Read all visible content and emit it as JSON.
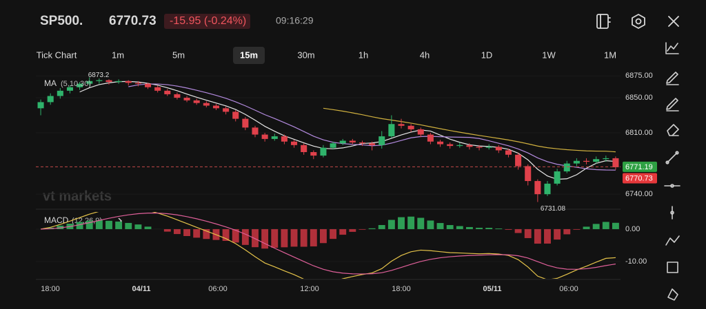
{
  "header": {
    "symbol": "SP500.",
    "price": "6770.73",
    "change": "-15.95 (-0.24%)",
    "time": "09:16:29"
  },
  "timeframes": {
    "items": [
      "Tick Chart",
      "1m",
      "5m",
      "15m",
      "30m",
      "1h",
      "4h",
      "1D",
      "1W",
      "1M"
    ],
    "selected": 3
  },
  "chart_data": {
    "type": "candlestick",
    "watermark": "vt markets",
    "ma": {
      "label": "MA",
      "params": "(5,10,30)",
      "colors": [
        "#e8e8e8",
        "#b48be0",
        "#d2b23f"
      ]
    },
    "macd": {
      "label": "MACD",
      "params": "(12,26,9)",
      "colors": [
        "#e6c44a",
        "#e0609a"
      ],
      "up": "#2e9e55",
      "down": "#b0303a",
      "ylim": [
        -15.3,
        5.3
      ],
      "yticks": [
        {
          "value": 0,
          "label": "0.00"
        },
        {
          "value": -10,
          "label": "-10.00"
        }
      ]
    },
    "up_color": "#2fb36b",
    "down_color": "#e0414b",
    "ylim": [
      6726,
      6883
    ],
    "yticks": [
      {
        "value": 6875,
        "label": "6875.00"
      },
      {
        "value": 6850,
        "label": "6850.00"
      },
      {
        "value": 6810,
        "label": "6810.00"
      },
      {
        "value": 6740,
        "label": "6740.00"
      }
    ],
    "high_label": "6873.2",
    "low_label": "6731.08",
    "price_tags": [
      {
        "value": 6771.19,
        "color": "#2ea043"
      },
      {
        "value": 6770.73,
        "color": "#e5383b"
      }
    ],
    "x_labels": [
      "18:00",
      "04/11",
      "06:00",
      "12:00",
      "18:00",
      "05/11",
      "06:00"
    ],
    "ohlc": [
      [
        6838,
        6848,
        6830,
        6845
      ],
      [
        6845,
        6855,
        6842,
        6852
      ],
      [
        6852,
        6861,
        6849,
        6858
      ],
      [
        6858,
        6864,
        6855,
        6862
      ],
      [
        6862,
        6868,
        6859,
        6866
      ],
      [
        6866,
        6873.2,
        6864,
        6869
      ],
      [
        6869,
        6872,
        6866,
        6870
      ],
      [
        6870,
        6871,
        6865,
        6868
      ],
      [
        6868,
        6871,
        6866,
        6869
      ],
      [
        6869,
        6870,
        6864,
        6867
      ],
      [
        6867,
        6869,
        6863,
        6866
      ],
      [
        6866,
        6867,
        6860,
        6862
      ],
      [
        6862,
        6864,
        6856,
        6858
      ],
      [
        6858,
        6860,
        6852,
        6854
      ],
      [
        6854,
        6856,
        6848,
        6850
      ],
      [
        6850,
        6852,
        6845,
        6847
      ],
      [
        6847,
        6849,
        6842,
        6844
      ],
      [
        6844,
        6846,
        6839,
        6841
      ],
      [
        6841,
        6843,
        6836,
        6838
      ],
      [
        6838,
        6840,
        6831,
        6834
      ],
      [
        6834,
        6836,
        6823,
        6826
      ],
      [
        6826,
        6828,
        6813,
        6816
      ],
      [
        6816,
        6818,
        6805,
        6808
      ],
      [
        6808,
        6810,
        6800,
        6803
      ],
      [
        6803,
        6809,
        6801,
        6806
      ],
      [
        6806,
        6808,
        6797,
        6800
      ],
      [
        6800,
        6802,
        6793,
        6796
      ],
      [
        6796,
        6798,
        6785,
        6788
      ],
      [
        6788,
        6790,
        6780,
        6784
      ],
      [
        6784,
        6796,
        6782,
        6793
      ],
      [
        6793,
        6800,
        6791,
        6798
      ],
      [
        6798,
        6803,
        6796,
        6801
      ],
      [
        6801,
        6803,
        6797,
        6799
      ],
      [
        6799,
        6801,
        6795,
        6798
      ],
      [
        6798,
        6800,
        6790,
        6796
      ],
      [
        6796,
        6812,
        6792,
        6806
      ],
      [
        6806,
        6830,
        6804,
        6820
      ],
      [
        6820,
        6826,
        6815,
        6818
      ],
      [
        6818,
        6820,
        6811,
        6814
      ],
      [
        6814,
        6816,
        6805,
        6808
      ],
      [
        6808,
        6810,
        6797,
        6800
      ],
      [
        6800,
        6802,
        6794,
        6797
      ],
      [
        6797,
        6799,
        6792,
        6795
      ],
      [
        6795,
        6799,
        6793,
        6796
      ],
      [
        6796,
        6798,
        6791,
        6794
      ],
      [
        6794,
        6796,
        6790,
        6793
      ],
      [
        6793,
        6797,
        6791,
        6794
      ],
      [
        6794,
        6796,
        6787,
        6790
      ],
      [
        6790,
        6792,
        6782,
        6785
      ],
      [
        6785,
        6787,
        6768,
        6772
      ],
      [
        6772,
        6774,
        6750,
        6755
      ],
      [
        6755,
        6757,
        6731.08,
        6740
      ],
      [
        6740,
        6755,
        6738,
        6752
      ],
      [
        6752,
        6769,
        6750,
        6766
      ],
      [
        6766,
        6778,
        6764,
        6775
      ],
      [
        6775,
        6781,
        6772,
        6778
      ],
      [
        6778,
        6781,
        6774,
        6777
      ],
      [
        6777,
        6783,
        6775,
        6780
      ],
      [
        6780,
        6784,
        6777,
        6781
      ],
      [
        6781,
        6783,
        6768,
        6770.73
      ]
    ]
  }
}
